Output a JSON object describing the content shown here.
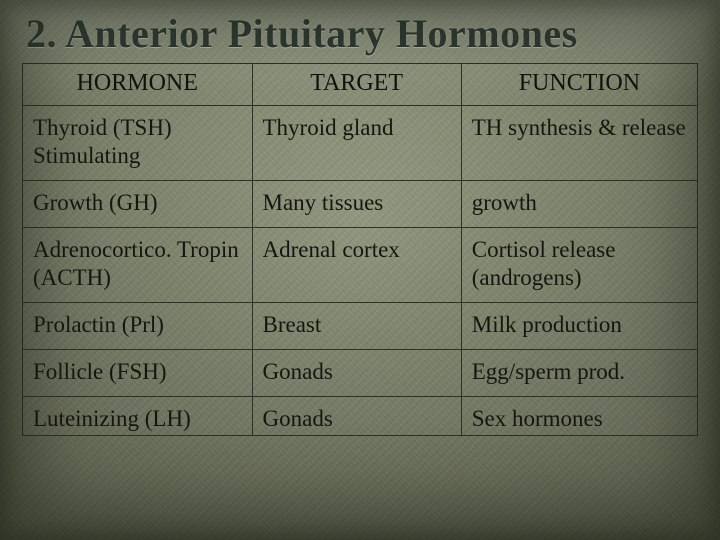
{
  "slide": {
    "title_number": "2.",
    "title_text": "Anterior Pituitary Hormones",
    "title_color": "#2f3a33",
    "background_base": "#8e9678",
    "border_color": "#2b3228"
  },
  "table": {
    "columns": [
      {
        "key": "hormone",
        "label": "HORMONE",
        "width_pct": 34,
        "align": "center"
      },
      {
        "key": "target",
        "label": "TARGET",
        "width_pct": 31,
        "align": "center"
      },
      {
        "key": "function",
        "label": "FUNCTION",
        "width_pct": 35,
        "align": "center"
      }
    ],
    "header_fontsize_pt": 18,
    "cell_fontsize_pt": 17,
    "text_color": "#14160f",
    "rows": [
      {
        "hormone": "Thyroid (TSH) Stimulating",
        "target": "Thyroid gland",
        "function": "TH synthesis & release"
      },
      {
        "hormone": "Growth (GH)",
        "target": "Many tissues",
        "function": "growth"
      },
      {
        "hormone": "Adrenocortico. Tropin (ACTH)",
        "target": "Adrenal cortex",
        "function": "Cortisol release (androgens)"
      },
      {
        "hormone": "Prolactin (Prl)",
        "target": "Breast",
        "function": "Milk production"
      },
      {
        "hormone": "Follicle (FSH)",
        "target": "Gonads",
        "function": "Egg/sperm prod."
      },
      {
        "hormone": "Luteinizing (LH)",
        "target": "Gonads",
        "function": "Sex hormones"
      }
    ]
  }
}
